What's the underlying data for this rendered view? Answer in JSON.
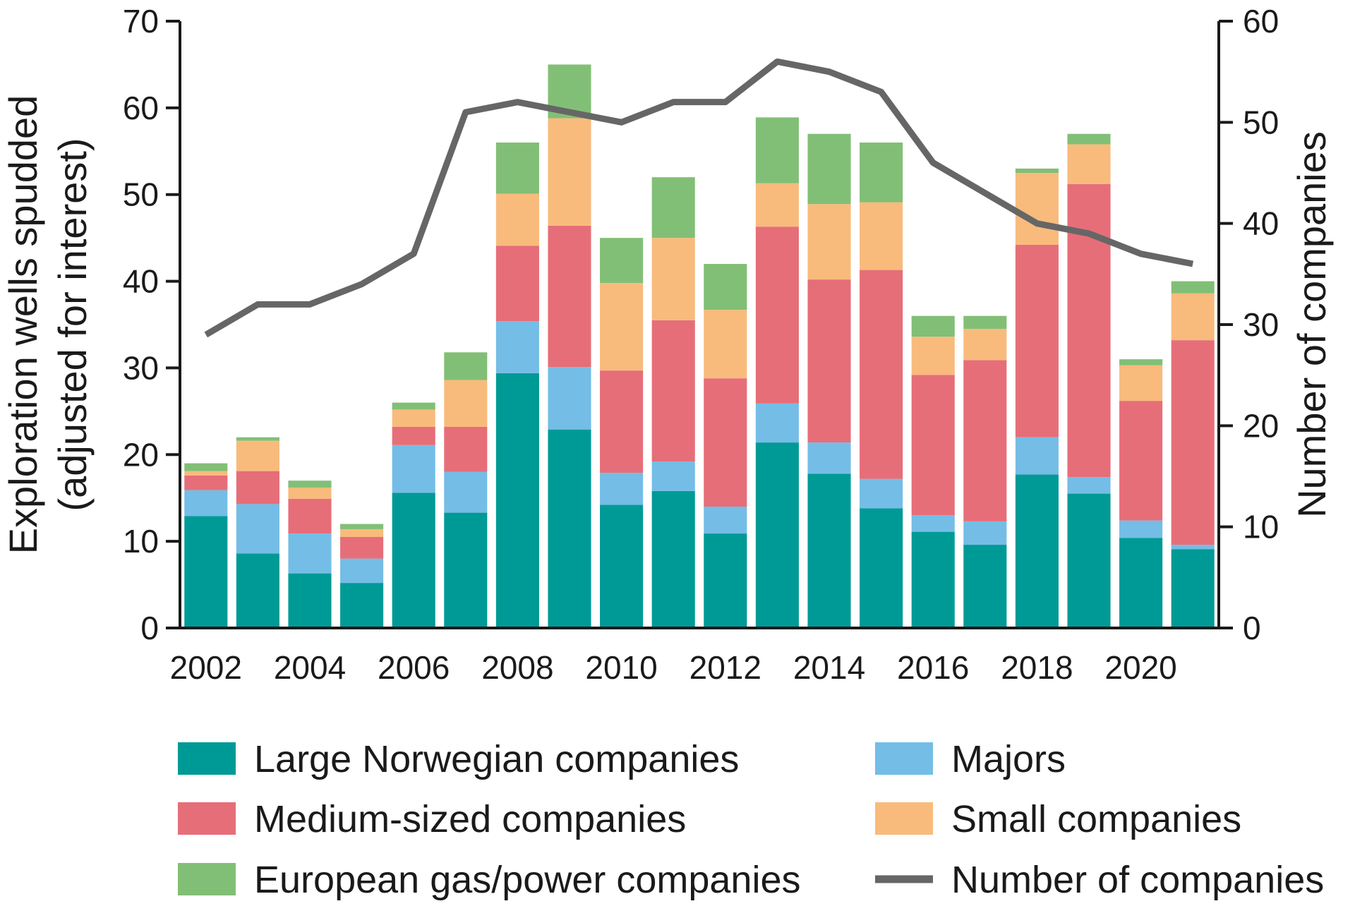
{
  "chart_data": {
    "type": "bar",
    "stacked": true,
    "title": "",
    "ylabel": [
      "Exploration wells spudded",
      "(adjusted for interest)"
    ],
    "y2label": "Number of companies",
    "xlabel": "",
    "ylim": [
      0,
      70
    ],
    "y2lim": [
      0,
      60
    ],
    "yticks": [
      0,
      10,
      20,
      30,
      40,
      50,
      60,
      70
    ],
    "y2ticks": [
      0,
      10,
      20,
      30,
      40,
      50,
      60
    ],
    "categories": [
      "2002",
      "2003",
      "2004",
      "2005",
      "2006",
      "2007",
      "2008",
      "2009",
      "2010",
      "2011",
      "2012",
      "2013",
      "2014",
      "2015",
      "2016",
      "2017",
      "2018",
      "2019",
      "2020",
      "2021"
    ],
    "xtick_labels": [
      "2002",
      "2004",
      "2006",
      "2008",
      "2010",
      "2012",
      "2014",
      "2016",
      "2018",
      "2020"
    ],
    "series": [
      {
        "name": "Large Norwegian companies",
        "color": "#009a96",
        "values": [
          12.9,
          8.6,
          6.3,
          5.2,
          15.6,
          13.3,
          29.4,
          22.9,
          14.2,
          15.8,
          10.9,
          21.4,
          17.8,
          13.8,
          11.1,
          9.6,
          17.7,
          15.5,
          10.4,
          9.1
        ]
      },
      {
        "name": "Majors",
        "color": "#74bde6",
        "values": [
          3.0,
          5.7,
          4.6,
          2.8,
          5.5,
          4.7,
          6.0,
          7.2,
          3.7,
          3.4,
          3.1,
          4.5,
          3.6,
          3.4,
          1.9,
          2.7,
          4.3,
          1.9,
          2.0,
          0.5
        ]
      },
      {
        "name": "Medium-sized companies",
        "color": "#e66e79",
        "values": [
          1.7,
          3.8,
          4.0,
          2.5,
          2.1,
          5.2,
          8.7,
          16.3,
          11.8,
          16.3,
          14.8,
          20.4,
          18.8,
          24.1,
          16.2,
          18.6,
          22.2,
          33.8,
          13.8,
          23.6
        ]
      },
      {
        "name": "Small companies",
        "color": "#f8bb7c",
        "values": [
          0.5,
          3.5,
          1.3,
          0.9,
          2.0,
          5.4,
          6.0,
          12.4,
          10.1,
          9.5,
          7.9,
          5.0,
          8.7,
          7.8,
          4.4,
          3.6,
          8.3,
          4.6,
          4.1,
          5.4
        ]
      },
      {
        "name": "European gas/power companies",
        "color": "#82bf76",
        "values": [
          0.9,
          0.4,
          0.8,
          0.6,
          0.8,
          3.2,
          5.9,
          6.2,
          5.2,
          7.0,
          5.3,
          7.6,
          8.1,
          6.9,
          2.4,
          1.5,
          0.5,
          1.2,
          0.7,
          1.4
        ]
      }
    ],
    "line_series": {
      "name": "Number of companies",
      "axis": "y2",
      "color": "#666666",
      "values": [
        29,
        32,
        32,
        34,
        37,
        51,
        52,
        51,
        50,
        52,
        52,
        56,
        55,
        53,
        46,
        43,
        40,
        39,
        37,
        36
      ]
    },
    "legend": {
      "placement": "bottom",
      "entries": [
        {
          "label": "Large Norwegian companies",
          "color": "#009a96",
          "kind": "patch"
        },
        {
          "label": "Majors",
          "color": "#74bde6",
          "kind": "patch"
        },
        {
          "label": "Medium-sized companies",
          "color": "#e66e79",
          "kind": "patch"
        },
        {
          "label": "Small companies",
          "color": "#f8bb7c",
          "kind": "patch"
        },
        {
          "label": "European gas/power companies",
          "color": "#82bf76",
          "kind": "patch"
        },
        {
          "label": "Number of companies",
          "color": "#666666",
          "kind": "line"
        }
      ]
    }
  }
}
